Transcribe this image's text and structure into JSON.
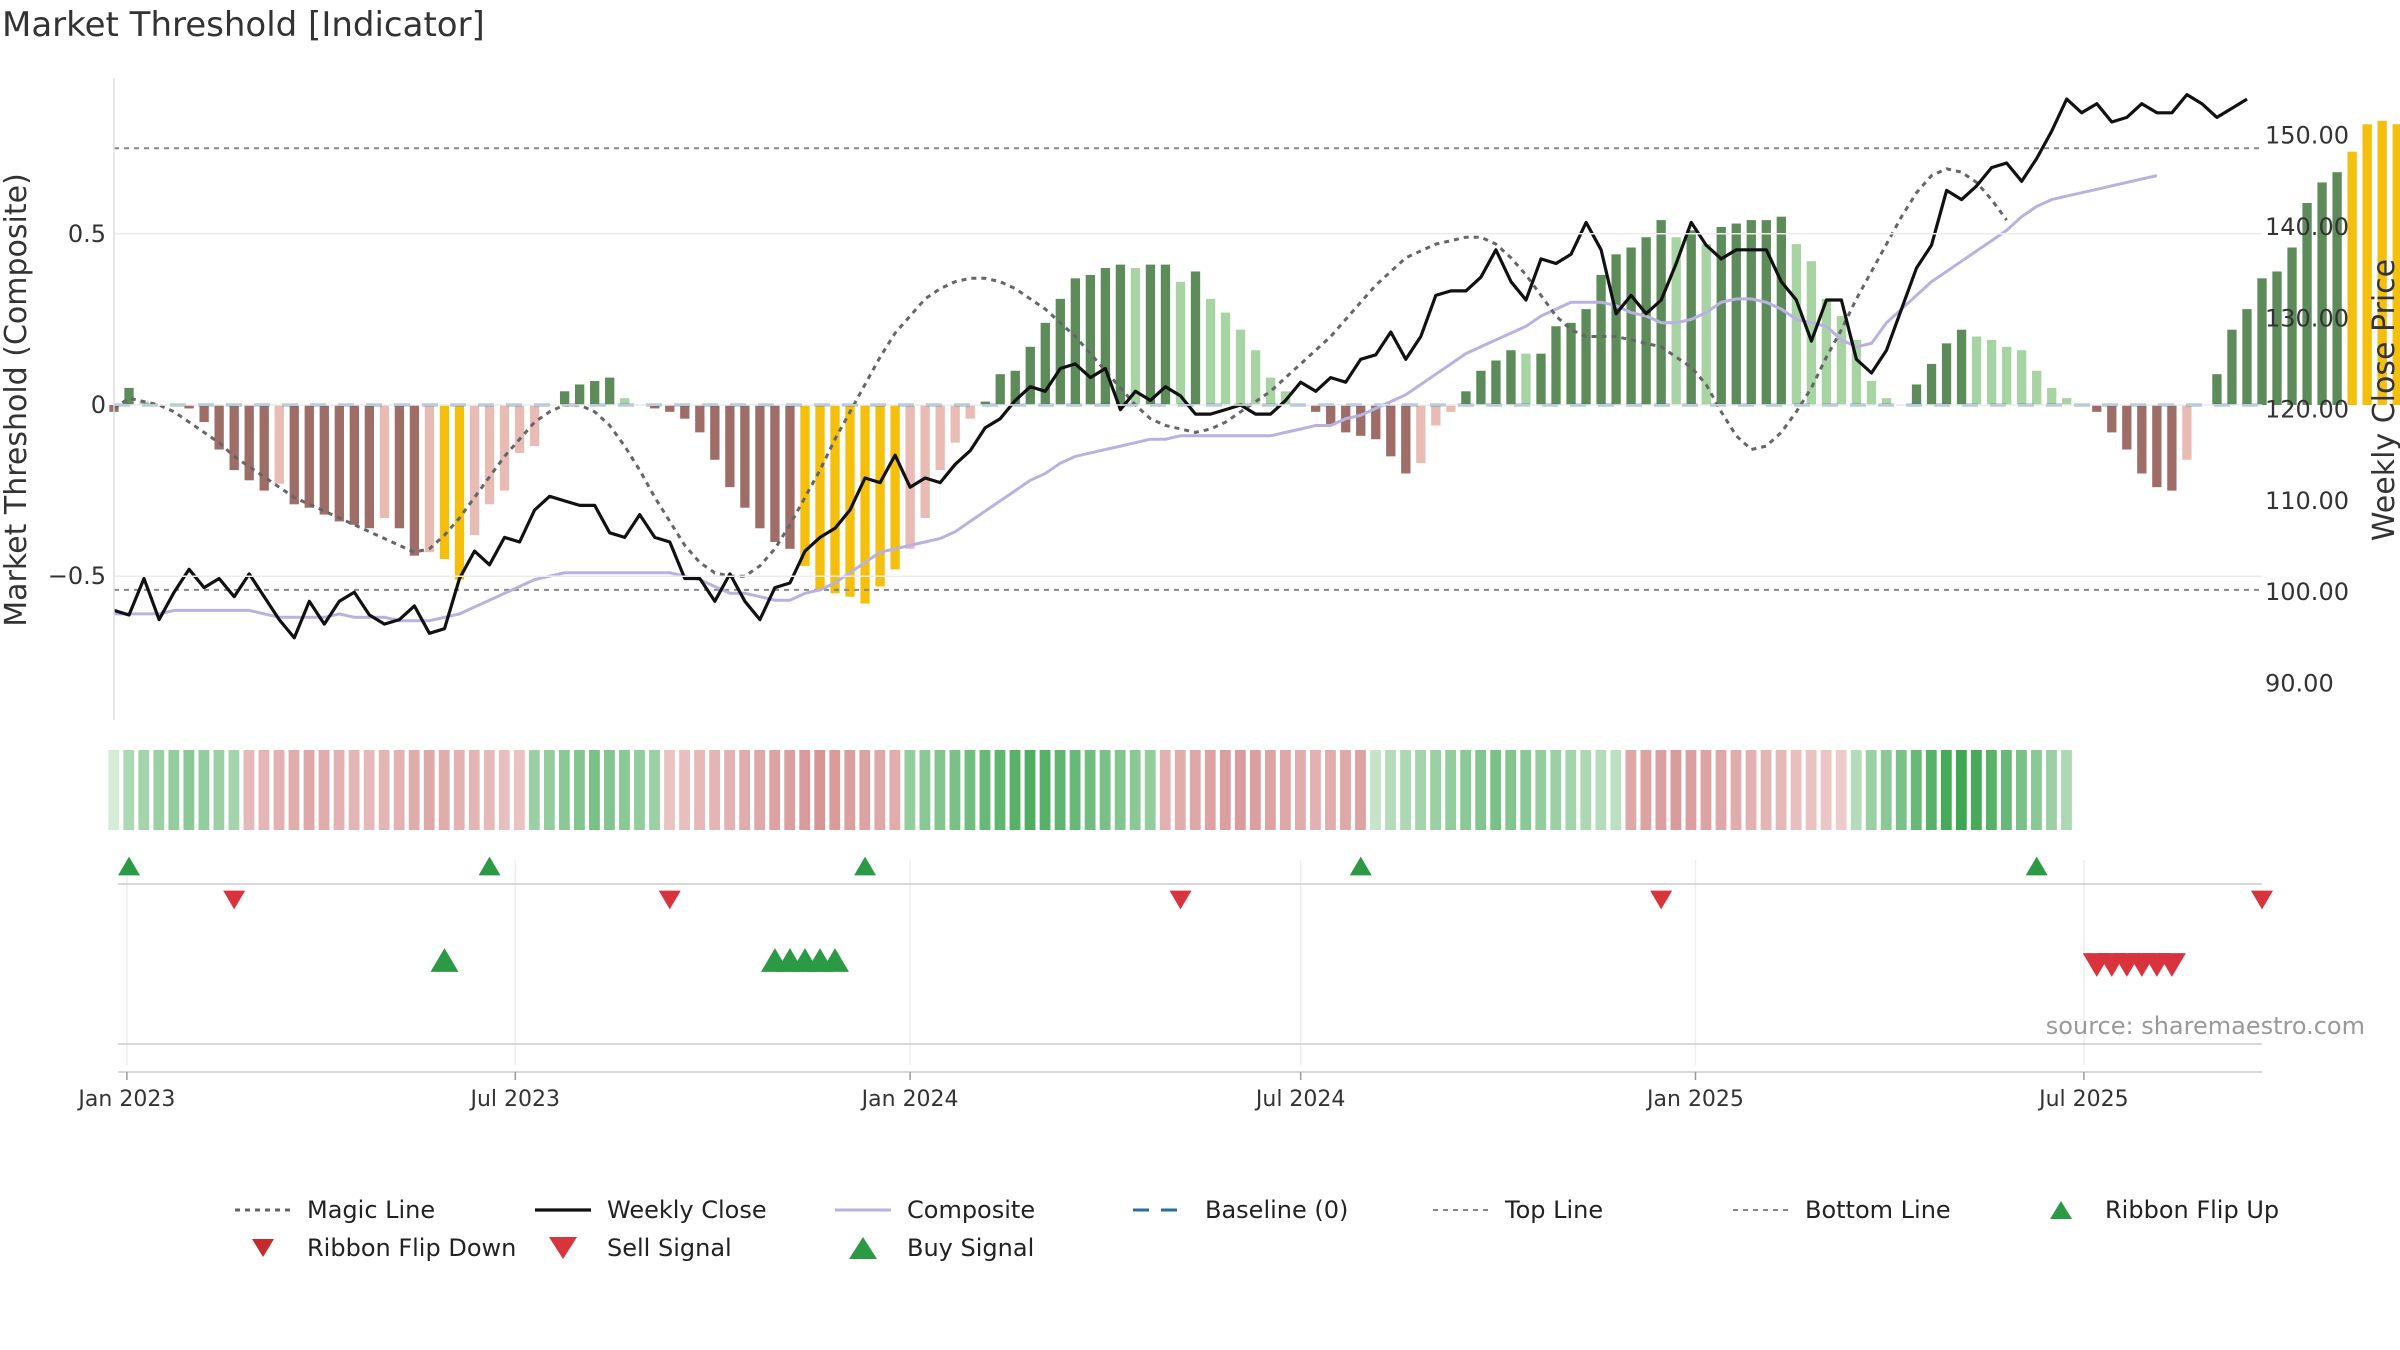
{
  "title": "Market Threshold [Indicator]",
  "source": "source: sharemaestro.com",
  "colors": {
    "weekly_close": "#111111",
    "composite": "#b9b2e0",
    "magic_line": "#666666",
    "baseline": "#2a6f97",
    "threshold_line": "#888888",
    "bar_pos_strong": "#5d8c5a",
    "bar_pos_weak": "#a8d4a4",
    "bar_neg_strong": "#9f6d68",
    "bar_neg_weak": "#e8bbb5",
    "bar_extreme": "#f5bf0e",
    "signal_up": "#2c9a45",
    "signal_down": "#d9343e"
  },
  "chart_data": {
    "type": "bar+line",
    "title": "Market Threshold [Indicator]",
    "ylabel_left": "Market Threshold (Composite)",
    "ylabel_right": "Weekly Close Price",
    "ylim_left": [
      -0.92,
      0.92
    ],
    "ylim_right": [
      86,
      155
    ],
    "xlim": [
      "2022-12-26",
      "2025-09-22"
    ],
    "left_ticks": [
      {
        "v": 0.5,
        "label": "0.5"
      },
      {
        "v": 0,
        "label": "0"
      },
      {
        "v": -0.5,
        "label": "−0.5"
      }
    ],
    "right_ticks": [
      {
        "v": 150,
        "label": "150.00"
      },
      {
        "v": 140,
        "label": "140.00"
      },
      {
        "v": 130,
        "label": "130.00"
      },
      {
        "v": 120,
        "label": "120.00"
      },
      {
        "v": 110,
        "label": "110.00"
      },
      {
        "v": 100,
        "label": "100.00"
      },
      {
        "v": 90,
        "label": "90.00"
      }
    ],
    "x_ticks": [
      {
        "date": "2023-01-01",
        "label": "Jan 2023"
      },
      {
        "date": "2023-07-01",
        "label": "Jul 2023"
      },
      {
        "date": "2024-01-01",
        "label": "Jan 2024"
      },
      {
        "date": "2024-07-01",
        "label": "Jul 2024"
      },
      {
        "date": "2025-01-01",
        "label": "Jan 2025"
      },
      {
        "date": "2025-07-01",
        "label": "Jul 2025"
      }
    ],
    "top_line": 0.75,
    "bottom_line": -0.54,
    "baseline": 0,
    "start_date": "2022-12-26",
    "week_days": 7,
    "composite_bars": [
      -0.02,
      0.05,
      0.01,
      0,
      0,
      -0.01,
      -0.05,
      -0.13,
      -0.19,
      -0.22,
      -0.25,
      -0.23,
      -0.29,
      -0.3,
      -0.32,
      -0.34,
      -0.35,
      -0.36,
      -0.33,
      -0.36,
      -0.44,
      -0.43,
      -0.45,
      -0.51,
      -0.38,
      -0.29,
      -0.25,
      -0.14,
      -0.12,
      0,
      0.04,
      0.06,
      0.07,
      0.08,
      0.02,
      0,
      -0.01,
      -0.02,
      -0.04,
      -0.08,
      -0.16,
      -0.24,
      -0.3,
      -0.36,
      -0.4,
      -0.42,
      -0.47,
      -0.54,
      -0.55,
      -0.56,
      -0.58,
      -0.53,
      -0.48,
      -0.42,
      -0.33,
      -0.19,
      -0.11,
      -0.04,
      0.01,
      0.09,
      0.1,
      0.17,
      0.24,
      0.31,
      0.37,
      0.38,
      0.4,
      0.41,
      0.4,
      0.41,
      0.41,
      0.36,
      0.39,
      0.31,
      0.27,
      0.22,
      0.16,
      0.08,
      0.04,
      0,
      -0.02,
      -0.06,
      -0.08,
      -0.09,
      -0.1,
      -0.15,
      -0.2,
      -0.17,
      -0.06,
      -0.02,
      0.04,
      0.1,
      0.13,
      0.16,
      0.15,
      0.15,
      0.23,
      0.24,
      0.28,
      0.38,
      0.44,
      0.46,
      0.49,
      0.54,
      0.49,
      0.51,
      0.47,
      0.52,
      0.53,
      0.54,
      0.54,
      0.55,
      0.47,
      0.42,
      0.31,
      0.26,
      0.19,
      0.07,
      0.02,
      0,
      0.06,
      0.12,
      0.18,
      0.22,
      0.2,
      0.19,
      0.17,
      0.16,
      0.1,
      0.05,
      0.02,
      0,
      -0.02,
      -0.08,
      -0.13,
      -0.2,
      -0.24,
      -0.25,
      -0.16,
      0,
      0.09,
      0.22,
      0.28,
      0.37,
      0.39,
      0.46,
      0.59,
      0.65,
      0.68,
      0.74,
      0.82,
      0.83,
      0.82,
      0.8,
      0.7,
      0.61,
      0.57,
      0.48,
      0.41,
      0.4
    ],
    "weekly_close": [
      98,
      97.5,
      101.5,
      97,
      100,
      102.5,
      100.5,
      101.5,
      99.5,
      102,
      99.5,
      97,
      95,
      99,
      96.5,
      99,
      100,
      97.5,
      96.5,
      97,
      98.5,
      95.5,
      96,
      101.5,
      104.5,
      103,
      106,
      105.5,
      109,
      110.5,
      110,
      109.5,
      109.5,
      106.5,
      106,
      108.5,
      106,
      105.5,
      101.5,
      101.5,
      99,
      102,
      99,
      97,
      100.5,
      101,
      104.5,
      106,
      107,
      109,
      112.5,
      112,
      115,
      111.5,
      112.5,
      112,
      114,
      115.5,
      118,
      119,
      121,
      122.5,
      122,
      124.5,
      125,
      123.5,
      124.5,
      120,
      122,
      121,
      122.5,
      121.5,
      119.5,
      119.5,
      120,
      120.5,
      119.5,
      119.5,
      121,
      123,
      122,
      123.5,
      123,
      125.5,
      126,
      128.5,
      125.5,
      128,
      132.5,
      133,
      133,
      134.5,
      137.5,
      134,
      132,
      136.5,
      136,
      137,
      140.5,
      137.5,
      130.5,
      132.5,
      130.5,
      132,
      136,
      140.5,
      138,
      136.5,
      137.5,
      137.5,
      137.5,
      134,
      132,
      127.5,
      132,
      132,
      125.5,
      124,
      126.5,
      131,
      135.5,
      138,
      144,
      143,
      144.5,
      146.5,
      147,
      145,
      147.5,
      150.5,
      154,
      152.5,
      153.5,
      151.5,
      152,
      153.5,
      152.5,
      152.5,
      154.5,
      153.5,
      152,
      153,
      154
    ],
    "composite_line": [
      -0.61,
      -0.61,
      -0.61,
      -0.61,
      -0.6,
      -0.6,
      -0.6,
      -0.6,
      -0.6,
      -0.6,
      -0.61,
      -0.62,
      -0.62,
      -0.62,
      -0.62,
      -0.61,
      -0.62,
      -0.62,
      -0.62,
      -0.63,
      -0.63,
      -0.63,
      -0.62,
      -0.61,
      -0.59,
      -0.57,
      -0.55,
      -0.53,
      -0.51,
      -0.5,
      -0.49,
      -0.49,
      -0.49,
      -0.49,
      -0.49,
      -0.49,
      -0.49,
      -0.49,
      -0.5,
      -0.51,
      -0.53,
      -0.55,
      -0.55,
      -0.56,
      -0.57,
      -0.57,
      -0.55,
      -0.54,
      -0.52,
      -0.49,
      -0.46,
      -0.43,
      -0.42,
      -0.41,
      -0.4,
      -0.39,
      -0.37,
      -0.34,
      -0.31,
      -0.28,
      -0.25,
      -0.22,
      -0.2,
      -0.17,
      -0.15,
      -0.14,
      -0.13,
      -0.12,
      -0.11,
      -0.1,
      -0.1,
      -0.09,
      -0.09,
      -0.09,
      -0.09,
      -0.09,
      -0.09,
      -0.09,
      -0.08,
      -0.07,
      -0.06,
      -0.06,
      -0.04,
      -0.03,
      -0.01,
      0.01,
      0.03,
      0.06,
      0.09,
      0.12,
      0.15,
      0.17,
      0.19,
      0.21,
      0.23,
      0.26,
      0.28,
      0.3,
      0.3,
      0.3,
      0.29,
      0.27,
      0.26,
      0.24,
      0.24,
      0.25,
      0.27,
      0.3,
      0.31,
      0.31,
      0.3,
      0.28,
      0.25,
      0.24,
      0.23,
      0.19,
      0.17,
      0.18,
      0.24,
      0.28,
      0.32,
      0.36,
      0.39,
      0.42,
      0.45,
      0.48,
      0.51,
      0.55,
      0.58,
      0.6,
      0.61,
      0.62,
      0.63,
      0.64,
      0.65,
      0.66,
      0.67
    ],
    "magic_line": [
      -0.01,
      0.02,
      0.01,
      0,
      -0.02,
      -0.05,
      -0.08,
      -0.11,
      -0.15,
      -0.18,
      -0.21,
      -0.24,
      -0.27,
      -0.29,
      -0.31,
      -0.33,
      -0.35,
      -0.37,
      -0.39,
      -0.41,
      -0.43,
      -0.42,
      -0.38,
      -0.33,
      -0.27,
      -0.21,
      -0.15,
      -0.1,
      -0.05,
      -0.02,
      0,
      0,
      -0.02,
      -0.06,
      -0.12,
      -0.19,
      -0.27,
      -0.34,
      -0.41,
      -0.46,
      -0.49,
      -0.5,
      -0.5,
      -0.47,
      -0.42,
      -0.35,
      -0.27,
      -0.19,
      -0.1,
      -0.02,
      0.06,
      0.14,
      0.21,
      0.26,
      0.31,
      0.34,
      0.36,
      0.37,
      0.37,
      0.36,
      0.34,
      0.31,
      0.28,
      0.24,
      0.2,
      0.15,
      0.1,
      0.05,
      0,
      -0.04,
      -0.06,
      -0.07,
      -0.08,
      -0.07,
      -0.05,
      -0.02,
      0.01,
      0.04,
      0.08,
      0.12,
      0.16,
      0.2,
      0.25,
      0.3,
      0.35,
      0.39,
      0.43,
      0.45,
      0.47,
      0.48,
      0.49,
      0.49,
      0.47,
      0.43,
      0.38,
      0.32,
      0.26,
      0.22,
      0.2,
      0.2,
      0.2,
      0.19,
      0.18,
      0.17,
      0.14,
      0.11,
      0.06,
      -0.02,
      -0.09,
      -0.13,
      -0.12,
      -0.08,
      -0.02,
      0.05,
      0.14,
      0.22,
      0.31,
      0.39,
      0.47,
      0.55,
      0.62,
      0.67,
      0.69,
      0.68,
      0.65,
      0.6,
      0.54
    ],
    "ribbon": [
      0.1,
      0.35,
      0.4,
      0.45,
      0.5,
      0.55,
      0.5,
      0.45,
      0.4,
      -0.4,
      -0.45,
      -0.5,
      -0.55,
      -0.6,
      -0.55,
      -0.5,
      -0.45,
      -0.4,
      -0.45,
      -0.5,
      -0.55,
      -0.6,
      -0.55,
      -0.5,
      -0.45,
      -0.4,
      -0.35,
      -0.3,
      0.45,
      0.5,
      0.55,
      0.6,
      0.65,
      0.6,
      0.55,
      0.5,
      0.45,
      -0.3,
      -0.35,
      -0.4,
      -0.45,
      -0.5,
      -0.55,
      -0.6,
      -0.65,
      -0.7,
      -0.75,
      -0.8,
      -0.75,
      -0.7,
      -0.65,
      -0.6,
      -0.55,
      0.5,
      0.55,
      0.6,
      0.65,
      0.7,
      0.75,
      0.8,
      0.85,
      0.9,
      0.85,
      0.8,
      0.75,
      0.7,
      0.65,
      0.6,
      0.55,
      0.5,
      -0.5,
      -0.55,
      -0.6,
      -0.65,
      -0.7,
      -0.75,
      -0.7,
      -0.65,
      -0.6,
      -0.55,
      -0.5,
      -0.55,
      -0.6,
      -0.65,
      0.2,
      0.3,
      0.35,
      0.4,
      0.45,
      0.5,
      0.55,
      0.6,
      0.65,
      0.6,
      0.55,
      0.5,
      0.45,
      0.4,
      0.35,
      0.3,
      0.25,
      -0.6,
      -0.65,
      -0.7,
      -0.75,
      -0.7,
      -0.65,
      -0.6,
      -0.55,
      -0.5,
      -0.45,
      -0.4,
      -0.35,
      -0.3,
      -0.25,
      -0.2,
      0.3,
      0.45,
      0.55,
      0.65,
      0.75,
      0.85,
      0.95,
      1.0,
      0.95,
      0.85,
      0.75,
      0.65,
      0.55,
      0.45,
      0.35
    ],
    "ribbon_flip_up": [
      "2023-01-02",
      "2023-06-19",
      "2023-12-11",
      "2024-07-29",
      "2025-06-09"
    ],
    "ribbon_flip_down": [
      "2023-02-20",
      "2023-09-11",
      "2024-05-06",
      "2024-12-16",
      "2025-09-22"
    ],
    "buy_signal": [
      "2023-05-29",
      "2023-10-30",
      "2023-11-06",
      "2023-11-13",
      "2023-11-20",
      "2023-11-27"
    ],
    "sell_signal": [
      "2025-07-07",
      "2025-07-14",
      "2025-07-21",
      "2025-07-28",
      "2025-08-04",
      "2025-08-11"
    ],
    "legend": {
      "magic_line": "Magic Line",
      "weekly_close": "Weekly Close",
      "composite": "Composite",
      "baseline": "Baseline (0)",
      "top_line": "Top Line",
      "bottom_line": "Bottom Line",
      "ribbon_flip_up": "Ribbon Flip Up",
      "ribbon_flip_down": "Ribbon Flip Down",
      "sell_signal": "Sell Signal",
      "buy_signal": "Buy Signal"
    }
  }
}
